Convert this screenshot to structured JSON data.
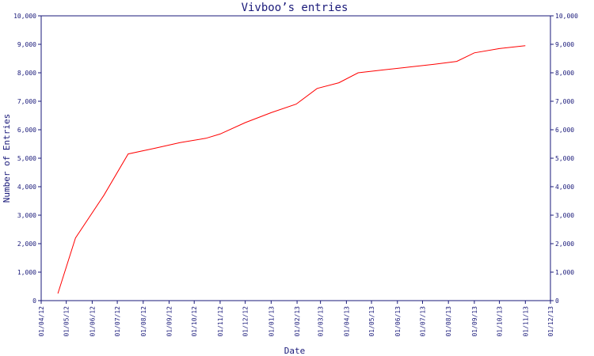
{
  "chart_data": {
    "type": "line",
    "title": "Vivboo’s entries",
    "xlabel": "Date",
    "ylabel": "Number of Entries",
    "ylim": [
      0,
      10000
    ],
    "y_ticks": [
      "0",
      "1,000",
      "2,000",
      "3,000",
      "4,000",
      "5,000",
      "6,000",
      "7,000",
      "8,000",
      "9,000",
      "10,000"
    ],
    "y_tick_values": [
      0,
      1000,
      2000,
      3000,
      4000,
      5000,
      6000,
      7000,
      8000,
      9000,
      10000
    ],
    "x_ticks": [
      "01/04/12",
      "01/05/12",
      "01/06/12",
      "01/07/12",
      "01/08/12",
      "01/09/12",
      "01/10/12",
      "01/11/12",
      "01/12/12",
      "01/01/13",
      "01/02/13",
      "01/03/13",
      "01/04/13",
      "01/05/13",
      "01/06/13",
      "01/07/13",
      "01/08/13",
      "01/09/13",
      "01/10/13",
      "01/11/13",
      "01/12/13"
    ],
    "x_tick_dates": [
      "2012-04-01",
      "2012-05-01",
      "2012-06-01",
      "2012-07-01",
      "2012-08-01",
      "2012-09-01",
      "2012-10-01",
      "2012-11-01",
      "2012-12-01",
      "2013-01-01",
      "2013-02-01",
      "2013-03-01",
      "2013-04-01",
      "2013-05-01",
      "2013-06-01",
      "2013-07-01",
      "2013-08-01",
      "2013-09-01",
      "2013-10-01",
      "2013-11-01",
      "2013-12-01"
    ],
    "grid": false,
    "line_color": "#ff0000",
    "axis_color": "#1a1a7a",
    "series": [
      {
        "points": [
          [
            "2012-04-21",
            250
          ],
          [
            "2012-05-12",
            2200
          ],
          [
            "2012-06-15",
            3700
          ],
          [
            "2012-07-14",
            5150
          ],
          [
            "2012-08-15",
            5350
          ],
          [
            "2012-09-14",
            5550
          ],
          [
            "2012-10-15",
            5700
          ],
          [
            "2012-11-01",
            5850
          ],
          [
            "2012-12-01",
            6250
          ],
          [
            "2013-01-01",
            6600
          ],
          [
            "2013-01-31",
            6900
          ],
          [
            "2013-02-25",
            7450
          ],
          [
            "2013-03-23",
            7650
          ],
          [
            "2013-04-15",
            8000
          ],
          [
            "2013-05-15",
            8100
          ],
          [
            "2013-06-15",
            8200
          ],
          [
            "2013-07-15",
            8300
          ],
          [
            "2013-08-11",
            8400
          ],
          [
            "2013-09-01",
            8700
          ],
          [
            "2013-10-01",
            8850
          ],
          [
            "2013-11-01",
            8950
          ]
        ]
      }
    ]
  }
}
